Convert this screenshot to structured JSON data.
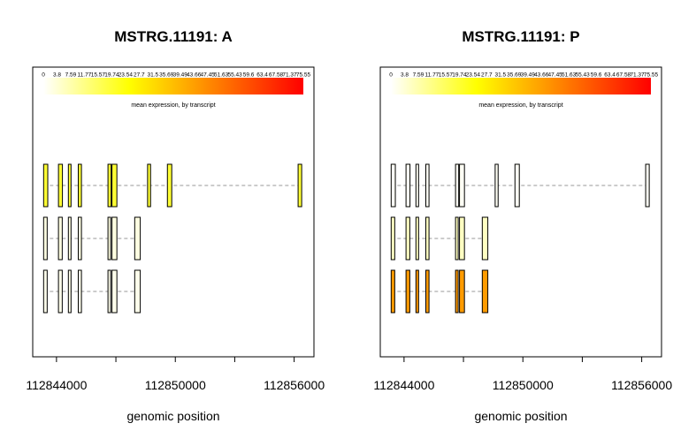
{
  "chart_data": {
    "type": "gene-structure",
    "shared": {
      "xlabel": "genomic position",
      "x_range": [
        112842800,
        112857000
      ],
      "x_ticks": [
        112844000,
        112847000,
        112850000,
        112853000,
        112856000
      ],
      "x_tick_labels": [
        "112844000",
        "",
        "112850000",
        "",
        "112856000"
      ],
      "legend_caption": "mean expression, by transcript",
      "legend_ticks": [
        "0",
        "3.8",
        "7.59",
        "11.77",
        "15.57",
        "19.74",
        "23.54",
        "27.7",
        "31.5",
        "35.69",
        "39.49",
        "43.66",
        "47.45",
        "51.63",
        "55.43",
        "59.6",
        "63.4",
        "67.58",
        "71.37",
        "75.55"
      ],
      "legend_range": [
        0,
        75.55
      ],
      "color_low": "#ffffff",
      "color_mid": "#ffff00",
      "color_mid2": "#ff8000",
      "color_high": "#ff0000"
    },
    "panels": [
      {
        "title": "MSTRG.11191: A",
        "transcripts": [
          {
            "expression": 20,
            "exons": [
              [
                112843350,
                112843560
              ],
              [
                112844100,
                112844300
              ],
              [
                112844600,
                112844720
              ],
              [
                112845100,
                112845260
              ],
              [
                112846600,
                112846760
              ],
              [
                112846800,
                112847050
              ],
              [
                112848600,
                112848750
              ],
              [
                112849600,
                112849820
              ],
              [
                112856200,
                112856380
              ]
            ]
          },
          {
            "expression": 3,
            "exons": [
              [
                112843350,
                112843530
              ],
              [
                112844100,
                112844290
              ],
              [
                112844600,
                112844720
              ],
              [
                112845100,
                112845260
              ],
              [
                112846600,
                112846720
              ],
              [
                112846800,
                112847050
              ],
              [
                112847950,
                112848230
              ]
            ]
          },
          {
            "expression": 2,
            "exons": [
              [
                112843350,
                112843530
              ],
              [
                112844100,
                112844290
              ],
              [
                112844600,
                112844720
              ],
              [
                112845100,
                112845260
              ],
              [
                112846600,
                112846720
              ],
              [
                112846800,
                112847050
              ],
              [
                112847950,
                112848230
              ]
            ]
          }
        ]
      },
      {
        "title": "MSTRG.11191: P",
        "transcripts": [
          {
            "expression": 1,
            "exons": [
              [
                112843350,
                112843560
              ],
              [
                112844100,
                112844300
              ],
              [
                112844600,
                112844720
              ],
              [
                112845100,
                112845260
              ],
              [
                112846600,
                112846760
              ],
              [
                112846800,
                112847050
              ],
              [
                112848600,
                112848750
              ],
              [
                112849600,
                112849820
              ],
              [
                112856200,
                112856380
              ]
            ]
          },
          {
            "expression": 6,
            "exons": [
              [
                112843350,
                112843530
              ],
              [
                112844100,
                112844290
              ],
              [
                112844600,
                112844720
              ],
              [
                112845100,
                112845260
              ],
              [
                112846600,
                112846720
              ],
              [
                112846800,
                112847050
              ],
              [
                112847950,
                112848230
              ]
            ]
          },
          {
            "expression": 45,
            "exons": [
              [
                112843350,
                112843530
              ],
              [
                112844100,
                112844290
              ],
              [
                112844600,
                112844720
              ],
              [
                112845100,
                112845260
              ],
              [
                112846600,
                112846720
              ],
              [
                112846800,
                112847050
              ],
              [
                112847950,
                112848230
              ]
            ]
          }
        ]
      }
    ]
  }
}
